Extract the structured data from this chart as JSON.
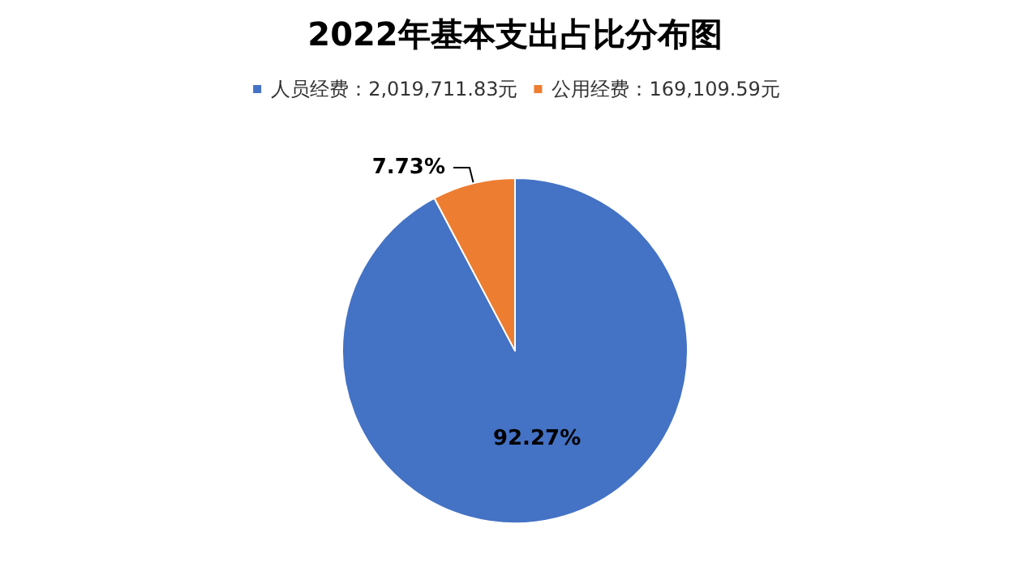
{
  "chart_data": {
    "type": "pie",
    "title": "2022年基本支出占比分布图",
    "categories": [
      "人员经费：2,019,711.83元",
      "公用经费：169,109.59元"
    ],
    "values": [
      92.27,
      7.73
    ],
    "colors": [
      "#4472c4",
      "#ed7d31"
    ],
    "value_labels": [
      "92.27%",
      "7.73%"
    ],
    "legend": "top"
  }
}
